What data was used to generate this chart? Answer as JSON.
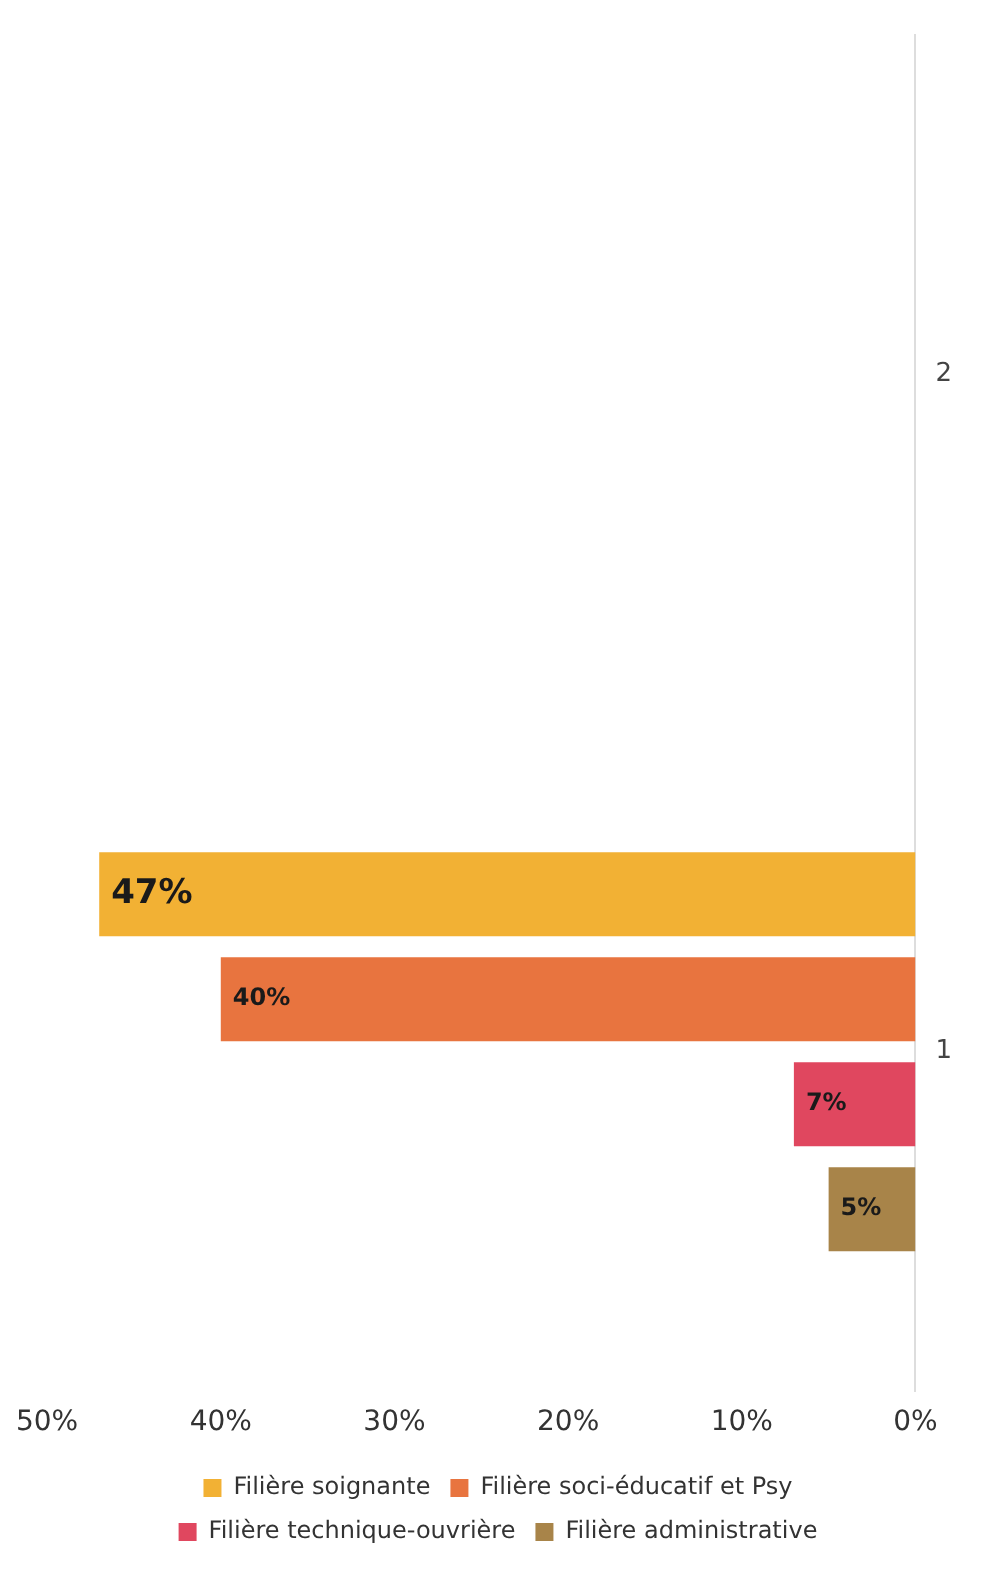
{
  "chart_data": {
    "type": "bar",
    "orientation": "horizontal",
    "categories": [
      "2",
      "1"
    ],
    "series": [
      {
        "name": "Filière soignante",
        "color": "#f2b134",
        "values": [
          null,
          47
        ],
        "value_labels": [
          null,
          "47%"
        ]
      },
      {
        "name": "Filière soci-éducatif et Psy",
        "color": "#e8743f",
        "values": [
          null,
          40
        ],
        "value_labels": [
          null,
          "40%"
        ]
      },
      {
        "name": "Filière technique-ouvrière",
        "color": "#e0475f",
        "values": [
          null,
          7
        ],
        "value_labels": [
          null,
          "7%"
        ]
      },
      {
        "name": "Filière administrative",
        "color": "#a88449",
        "values": [
          null,
          5
        ],
        "value_labels": [
          null,
          "5%"
        ]
      }
    ],
    "xlim": [
      50,
      0
    ],
    "xticks": [
      {
        "value": 50,
        "label": "50%"
      },
      {
        "value": 40,
        "label": "40%"
      },
      {
        "value": 30,
        "label": "30%"
      },
      {
        "value": 20,
        "label": "20%"
      },
      {
        "value": 10,
        "label": "10%"
      },
      {
        "value": 0,
        "label": "0%"
      }
    ],
    "grid": false,
    "legend": "bottom"
  }
}
